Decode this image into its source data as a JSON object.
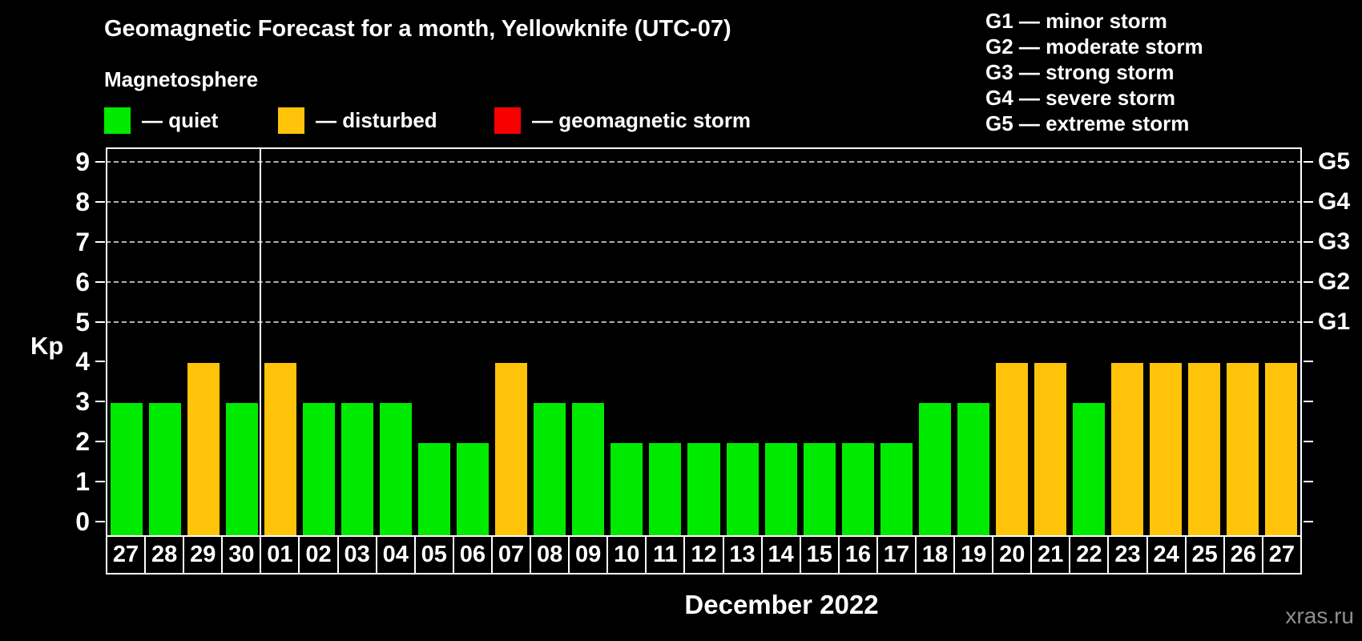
{
  "title": "Geomagnetic Forecast for a month, Yellowknife (UTC-07)",
  "subtitle": "Magnetosphere",
  "colors": {
    "quiet": "#00ea00",
    "disturbed": "#ffc30a",
    "storm": "#f80000",
    "grid": "#b3b3b3",
    "axis": "#ffffff",
    "watermark_text": "#8f8f8f"
  },
  "legend": [
    {
      "status": "quiet",
      "label": "— quiet"
    },
    {
      "status": "disturbed",
      "label": "— disturbed"
    },
    {
      "status": "storm",
      "label": "— geomagnetic storm"
    }
  ],
  "g_legend": [
    "G1 — minor storm",
    "G2 — moderate storm",
    "G3 — strong storm",
    "G4 — severe storm",
    "G5 — extreme storm"
  ],
  "y_axis": {
    "label": "Kp",
    "ticks": [
      0,
      1,
      2,
      3,
      4,
      5,
      6,
      7,
      8,
      9
    ]
  },
  "right_axis": {
    "labels": [
      "G1",
      "G2",
      "G3",
      "G4",
      "G5"
    ],
    "kp_levels": [
      5,
      6,
      7,
      8,
      9
    ]
  },
  "x_axis": {
    "label": "December 2022"
  },
  "watermark": "xras.ru",
  "chart_data": {
    "type": "bar",
    "title": "Geomagnetic Forecast for a month, Yellowknife (UTC-07)",
    "ylabel": "Kp",
    "ylim": [
      0,
      9
    ],
    "grid_kp_levels": [
      5,
      6,
      7,
      8,
      9
    ],
    "month_boundary_after_index": 3,
    "categories": [
      "27",
      "28",
      "29",
      "30",
      "01",
      "02",
      "03",
      "04",
      "05",
      "06",
      "07",
      "08",
      "09",
      "10",
      "11",
      "12",
      "13",
      "14",
      "15",
      "16",
      "17",
      "18",
      "19",
      "20",
      "21",
      "22",
      "23",
      "24",
      "25",
      "26",
      "27"
    ],
    "values": [
      3,
      3,
      4,
      3,
      4,
      3,
      3,
      3,
      2,
      2,
      4,
      3,
      3,
      2,
      2,
      2,
      2,
      2,
      2,
      2,
      2,
      3,
      3,
      4,
      4,
      3,
      4,
      4,
      4,
      4,
      4
    ],
    "statuses": [
      "quiet",
      "quiet",
      "disturbed",
      "quiet",
      "disturbed",
      "quiet",
      "quiet",
      "quiet",
      "quiet",
      "quiet",
      "disturbed",
      "quiet",
      "quiet",
      "quiet",
      "quiet",
      "quiet",
      "quiet",
      "quiet",
      "quiet",
      "quiet",
      "quiet",
      "quiet",
      "quiet",
      "disturbed",
      "disturbed",
      "quiet",
      "disturbed",
      "disturbed",
      "disturbed",
      "disturbed",
      "disturbed"
    ]
  }
}
